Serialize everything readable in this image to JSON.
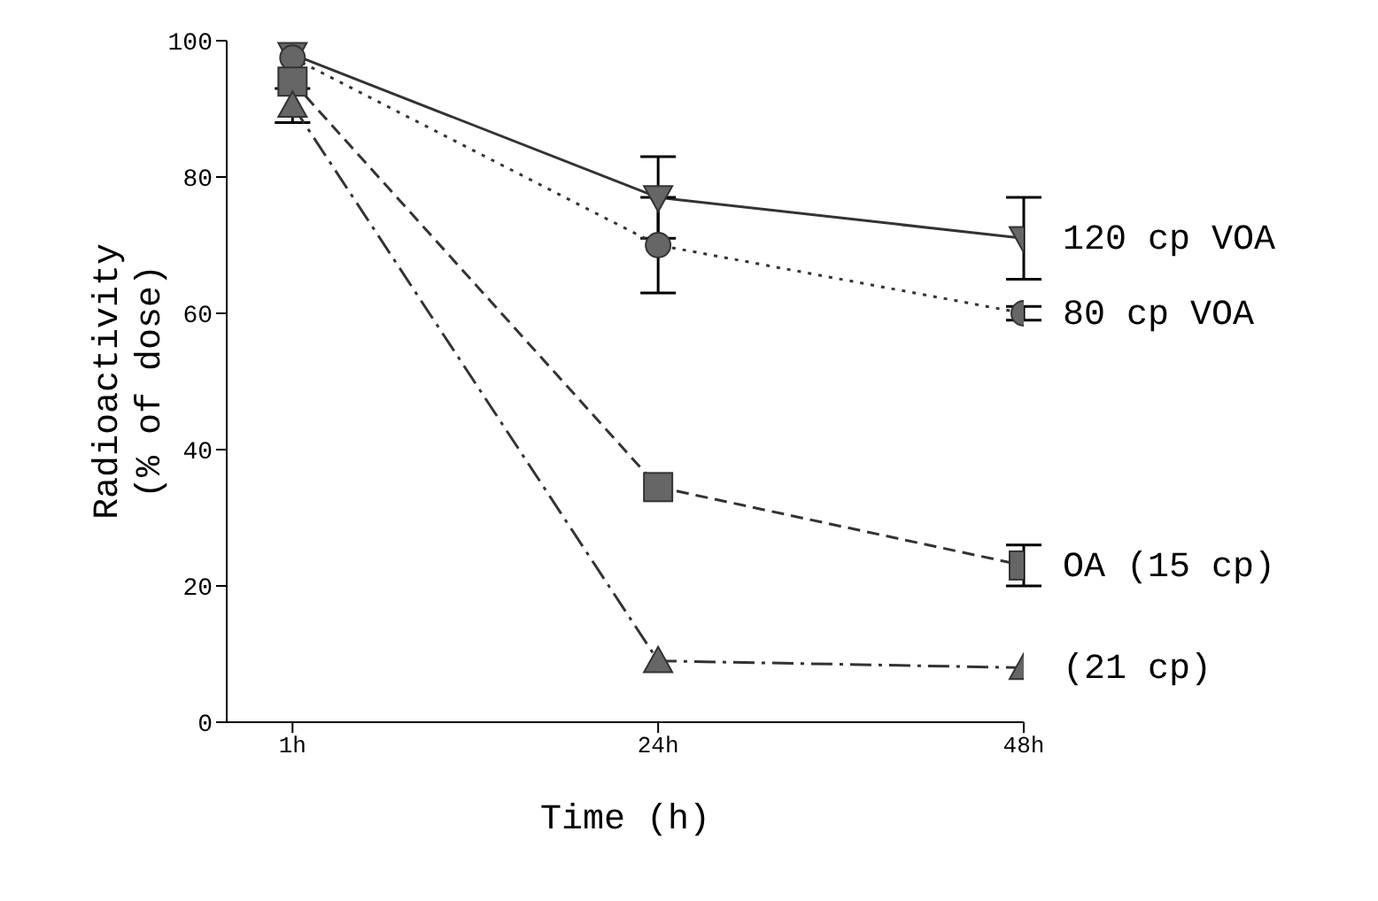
{
  "chart_data": {
    "type": "line",
    "xlabel": "Time (h)",
    "ylabel": "Radioactivity\n(% of dose)",
    "categories": [
      "1h",
      "24h",
      "48h"
    ],
    "ylim": [
      0,
      100
    ],
    "yticks": [
      0,
      20,
      40,
      60,
      80,
      100
    ],
    "grid": false,
    "legend": false,
    "series": [
      {
        "name": "120 cp VOA",
        "color": "#333333",
        "marker": "triangle-down",
        "line_style": "solid",
        "values": [
          98,
          77,
          71
        ],
        "errors": [
          null,
          6,
          6
        ]
      },
      {
        "name": "80 cp VOA",
        "color": "#333333",
        "marker": "circle",
        "line_style": "dotted",
        "values": [
          97.5,
          70,
          60
        ],
        "errors": [
          null,
          7,
          1
        ]
      },
      {
        "name": "OA (15 cp)",
        "color": "#333333",
        "marker": "square",
        "line_style": "dashed",
        "values": [
          94,
          34.5,
          23
        ],
        "errors": [
          null,
          null,
          3
        ]
      },
      {
        "name": "(21 cp)",
        "color": "#333333",
        "marker": "triangle",
        "line_style": "dashdot",
        "values": [
          90.5,
          9,
          8
        ],
        "errors": [
          2.5,
          null,
          null
        ]
      }
    ]
  }
}
